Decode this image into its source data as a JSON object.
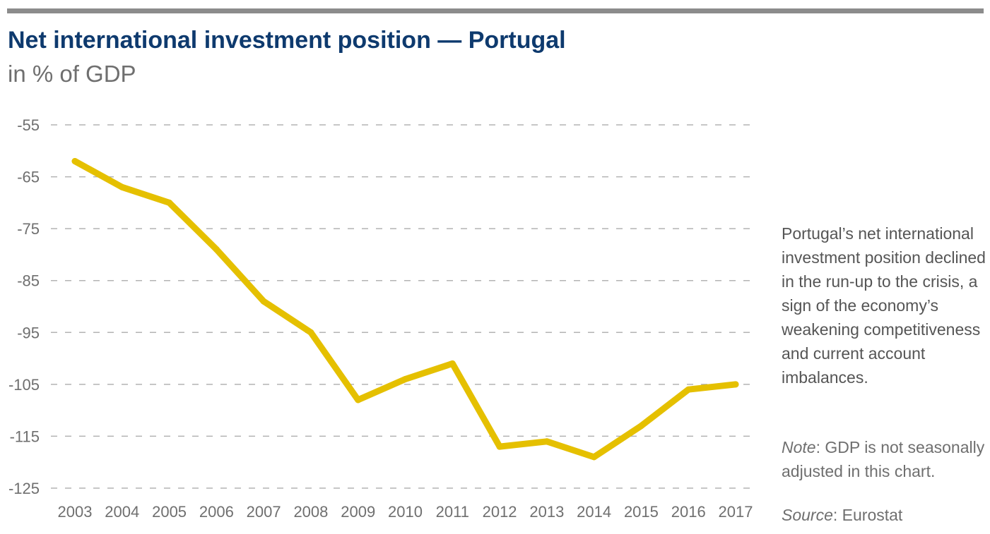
{
  "header": {
    "title": "Net international investment position — Portugal",
    "subtitle": "in % of GDP"
  },
  "colors": {
    "title": "#0e3a6e",
    "line": "#e5c000",
    "grid": "#b3b3b3",
    "rule": "#8c8c8c",
    "text": "#6f6f6f"
  },
  "chart_data": {
    "type": "line",
    "title": "Net international investment position — Portugal",
    "subtitle": "in % of GDP",
    "xlabel": "",
    "ylabel": "",
    "x": [
      "2003",
      "2004",
      "2005",
      "2006",
      "2007",
      "2008",
      "2009",
      "2010",
      "2011",
      "2012",
      "2013",
      "2014",
      "2015",
      "2016",
      "2017"
    ],
    "series": [
      {
        "name": "Net international investment position",
        "values": [
          -62,
          -67,
          -70,
          -79,
          -89,
          -95,
          -108,
          -104,
          -101,
          -117,
          -116,
          -119,
          -113,
          -106,
          -105
        ]
      }
    ],
    "yticks": [
      "-55",
      "-65",
      "-75",
      "-85",
      "-95",
      "-105",
      "-115",
      "-125"
    ],
    "ylim": [
      -125,
      -55
    ],
    "grid": true,
    "legend": "none"
  },
  "annotation": {
    "text": "Portugal’s net international investment position declined in the run-up to the crisis, a sign of the economy’s weakening competitiveness and current account imbalances."
  },
  "note": {
    "label": "Note",
    "text": ": GDP is not seasonally adjusted in this chart."
  },
  "source": {
    "label": "Source",
    "text": ": Eurostat"
  }
}
